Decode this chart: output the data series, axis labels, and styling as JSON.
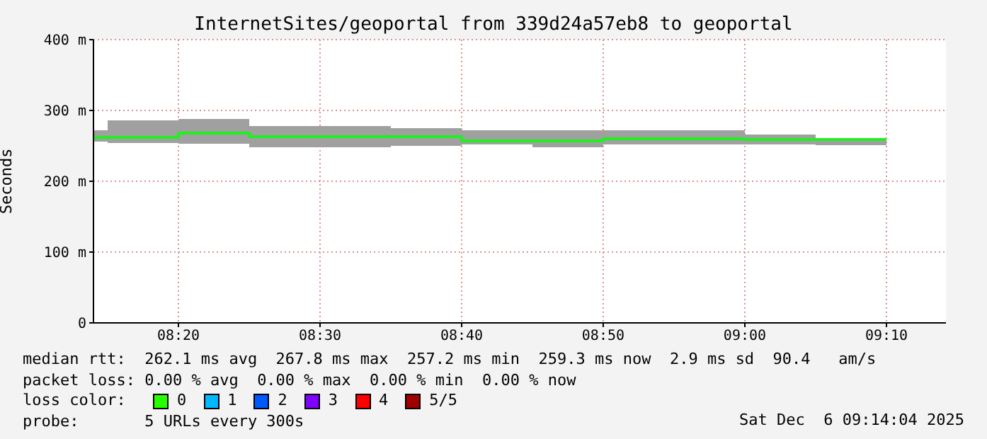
{
  "chart_data": {
    "type": "step",
    "title": "InternetSites/geoportal from 339d24a57eb8 to geoportal",
    "ylabel": "Seconds",
    "x": [
      8.2333,
      8.25,
      8.3333,
      8.4167,
      8.5,
      8.5833,
      8.6667,
      8.75,
      8.8333,
      8.9167,
      9.0,
      9.0833,
      9.1667
    ],
    "series": [
      {
        "color": "#20f020",
        "values": [
          262,
          262,
          268,
          263,
          263,
          263,
          257,
          257,
          260,
          260,
          259,
          259,
          259
        ],
        "lower": [
          256,
          254,
          253,
          248,
          248,
          250,
          252,
          248,
          252,
          252,
          252,
          251,
          251
        ],
        "upper": [
          272,
          286,
          288,
          278,
          278,
          275,
          272,
          272,
          272,
          272,
          266,
          261,
          261
        ]
      }
    ],
    "xlim": [
      8.2333,
      9.2367
    ],
    "xticks": [
      {
        "value": 8.3333,
        "label": "08:20"
      },
      {
        "value": 8.5,
        "label": "08:30"
      },
      {
        "value": 8.6667,
        "label": "08:40"
      },
      {
        "value": 8.8333,
        "label": "08:50"
      },
      {
        "value": 9.0,
        "label": "09:00"
      },
      {
        "value": 9.1667,
        "label": "09:10"
      }
    ],
    "ylim": [
      0,
      400
    ],
    "yticks": [
      0,
      {
        "value": 100,
        "label": "100 m"
      },
      {
        "value": 200,
        "label": "200 m"
      },
      {
        "value": 300,
        "label": "300 m"
      },
      {
        "value": 400,
        "label": "400 m"
      }
    ],
    "grid": true,
    "annotations": [
      "median rtt:  262.1 ms avg  267.8 ms max  257.2 ms min  259.3 ms now  2.9 ms sd  90.4   am/s",
      "packet loss: 0.00 % avg  0.00 % max  0.00 % min  0.00 % now",
      "loss color:",
      "0",
      "1",
      "2",
      "3",
      "4",
      "5/5",
      "probe:       5 URLs every 300s",
      "Sat Dec  6 09:14:04 2025"
    ]
  }
}
